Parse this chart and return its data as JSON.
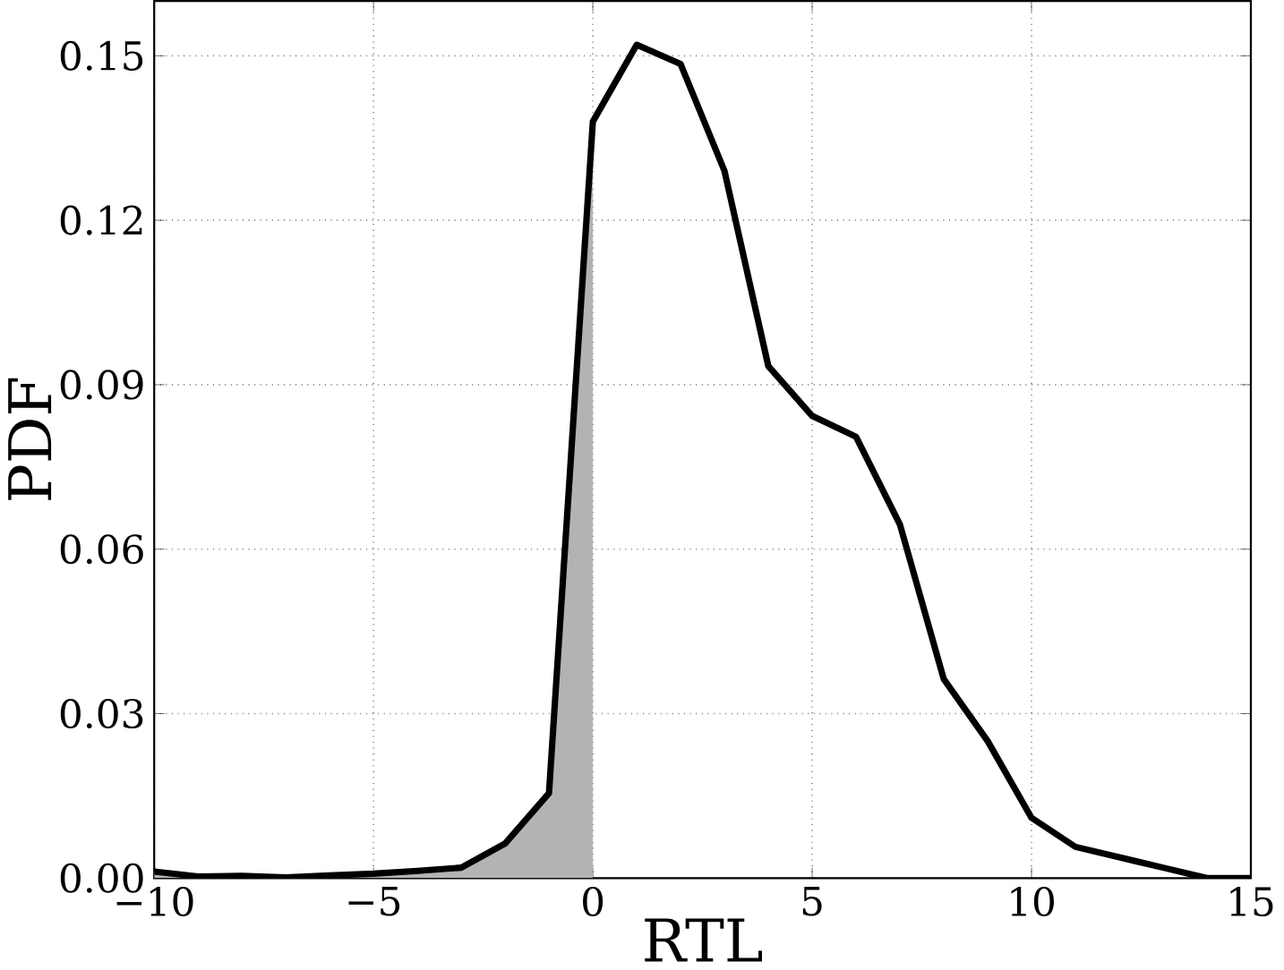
{
  "chart_data": {
    "type": "line",
    "xlabel": "RTL",
    "ylabel": "PDF",
    "series": [
      {
        "type": "area",
        "color": "#b3b3b3",
        "x": [
          -10,
          -9,
          -8,
          -7,
          -6,
          -5,
          -4,
          -3,
          -2,
          -1,
          0
        ],
        "values": [
          0.0012,
          0.0003,
          0.0004,
          0.0001,
          0.0005,
          0.0008,
          0.0013,
          0.0019,
          0.0063,
          0.0155,
          0.138
        ]
      },
      {
        "color": "#000000",
        "x": [
          -10,
          -9,
          -8,
          -7,
          -6,
          -5,
          -4,
          -3,
          -2,
          -1,
          0,
          1,
          2,
          3,
          4,
          5,
          6,
          7,
          8,
          9,
          10,
          11,
          12,
          13,
          14,
          15
        ],
        "values": [
          0.0012,
          0.0003,
          0.0004,
          0.0001,
          0.0005,
          0.0008,
          0.0013,
          0.0019,
          0.0063,
          0.0155,
          0.138,
          0.152,
          0.1485,
          0.129,
          0.0934,
          0.0843,
          0.0805,
          0.0645,
          0.0363,
          0.025,
          0.011,
          0.0057,
          0.0038,
          0.0019,
          0.0,
          0.0
        ]
      }
    ],
    "xlim": [
      -10,
      15
    ],
    "ylim": [
      0,
      0.16
    ],
    "xticks": [
      {
        "value": -10,
        "label": "−10"
      },
      {
        "value": -5,
        "label": "−5"
      },
      0,
      5,
      10,
      15
    ],
    "yticks": [
      {
        "value": 0,
        "label": "0.00"
      },
      0.03,
      0.06,
      0.09,
      0.12,
      0.15
    ],
    "grid": true,
    "line_style": "solid",
    "marker": "none"
  }
}
